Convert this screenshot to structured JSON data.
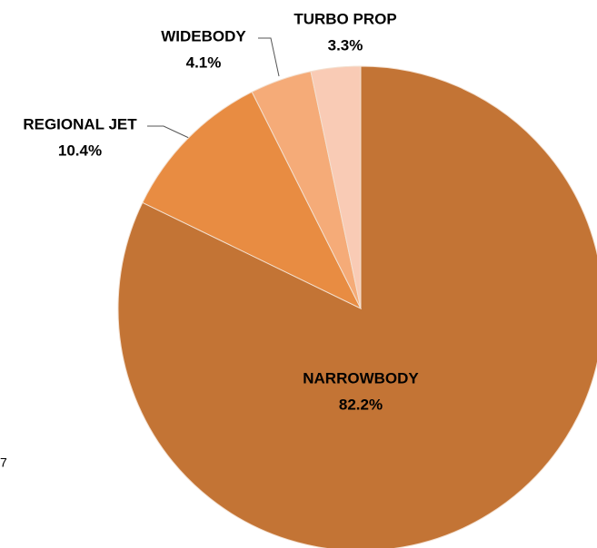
{
  "chart_data": {
    "type": "pie",
    "categories": [
      "NARROWBODY",
      "REGIONAL JET",
      "WIDEBODY",
      "TURBO PROP"
    ],
    "values": [
      82.2,
      10.4,
      4.1,
      3.3
    ],
    "value_labels": [
      "82.2%",
      "10.4%",
      "4.1%",
      "3.3%"
    ],
    "colors": [
      "#c37435",
      "#e88c42",
      "#f5ab78",
      "#f9cbb5"
    ],
    "annotation": "7"
  }
}
